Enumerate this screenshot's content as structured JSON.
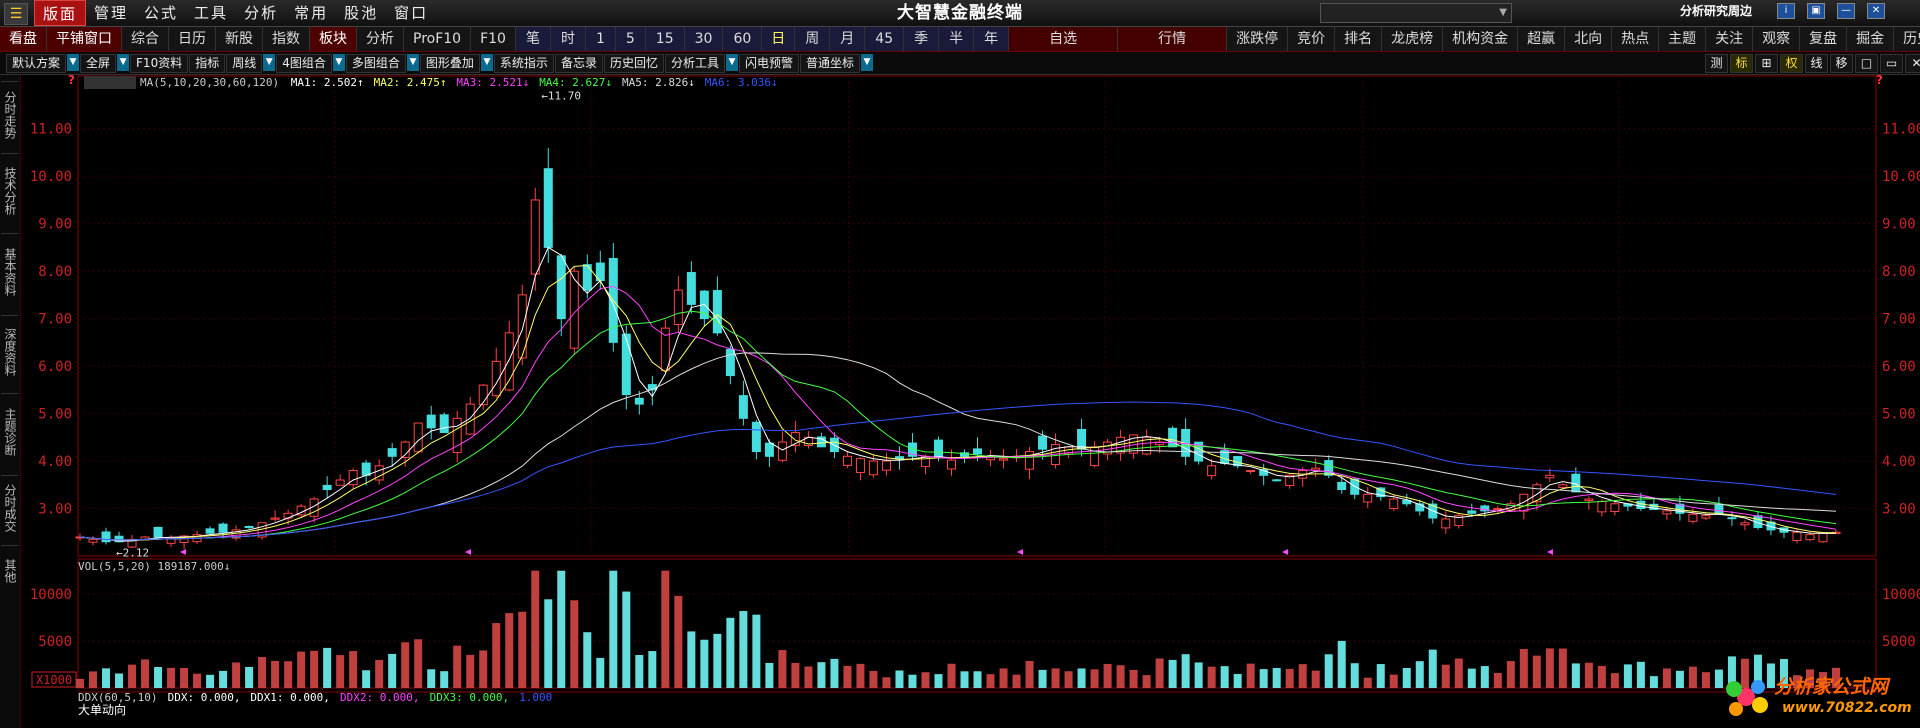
{
  "app": {
    "title": "大智慧金融终端",
    "menu_icon": "hamburger-icon",
    "menus": [
      "版面",
      "管理",
      "公式",
      "工具",
      "分析",
      "常用",
      "股池",
      "窗口"
    ],
    "active_menu": "版面",
    "top_right_label": "分析研究周边",
    "window_buttons": [
      "i",
      "▣",
      "—",
      "✕"
    ],
    "window_button_icons": [
      "info-icon",
      "restore-icon",
      "minimize-icon",
      "close-icon"
    ]
  },
  "tabs": [
    {
      "label": "看盘",
      "style": "red"
    },
    {
      "label": "平铺窗口",
      "style": "red"
    },
    {
      "label": "综合",
      "style": ""
    },
    {
      "label": "日历",
      "style": ""
    },
    {
      "label": "新股",
      "style": ""
    },
    {
      "label": "指数",
      "style": ""
    },
    {
      "label": "板块",
      "style": "red"
    },
    {
      "label": "分析",
      "style": ""
    },
    {
      "label": "ProF10",
      "style": ""
    },
    {
      "label": "F10",
      "style": ""
    },
    {
      "label": "笔",
      "style": "blue"
    },
    {
      "label": "时",
      "style": "blue"
    },
    {
      "label": "1",
      "style": "blue"
    },
    {
      "label": "5",
      "style": "blue"
    },
    {
      "label": "15",
      "style": "blue"
    },
    {
      "label": "30",
      "style": "blue"
    },
    {
      "label": "60",
      "style": "blue"
    },
    {
      "label": "日",
      "style": "bluesel"
    },
    {
      "label": "周",
      "style": "blue"
    },
    {
      "label": "月",
      "style": "blue"
    },
    {
      "label": "45",
      "style": "blue"
    },
    {
      "label": "季",
      "style": "blue"
    },
    {
      "label": "半",
      "style": "blue"
    },
    {
      "label": "年",
      "style": "blue"
    },
    {
      "label": "自选",
      "style": "wide"
    },
    {
      "label": "行情",
      "style": "wide"
    },
    {
      "label": "涨跌停",
      "style": ""
    },
    {
      "label": "竞价",
      "style": ""
    },
    {
      "label": "排名",
      "style": ""
    },
    {
      "label": "龙虎榜",
      "style": ""
    },
    {
      "label": "机构资金",
      "style": ""
    },
    {
      "label": "超赢",
      "style": ""
    },
    {
      "label": "北向",
      "style": ""
    },
    {
      "label": "热点",
      "style": ""
    },
    {
      "label": "主题",
      "style": ""
    },
    {
      "label": "关注",
      "style": ""
    },
    {
      "label": "观察",
      "style": ""
    },
    {
      "label": "复盘",
      "style": ""
    },
    {
      "label": "掘金",
      "style": ""
    },
    {
      "label": "历史",
      "style": ""
    }
  ],
  "toolbar": {
    "items": [
      {
        "label": "默认方案",
        "dd": true
      },
      {
        "label": "全屏",
        "dd": true
      },
      {
        "label": "F10资料",
        "dd": false
      },
      {
        "label": "指标",
        "dd": false
      },
      {
        "label": "周线",
        "dd": true
      },
      {
        "label": "4图组合",
        "dd": true
      },
      {
        "label": "多图组合",
        "dd": true
      },
      {
        "label": "图形叠加",
        "dd": true
      },
      {
        "label": "系统指示",
        "dd": false
      },
      {
        "label": "备忘录",
        "dd": false
      },
      {
        "label": "历史回忆",
        "dd": false
      },
      {
        "label": "分析工具",
        "dd": true
      },
      {
        "label": "闪电预警",
        "dd": false
      },
      {
        "label": "普通坐标",
        "dd": true
      }
    ],
    "right": [
      {
        "label": "测",
        "on": false
      },
      {
        "label": "标",
        "on": true
      },
      {
        "label": "⊞",
        "on": false
      },
      {
        "label": "权",
        "on": true
      },
      {
        "label": "线",
        "on": false
      },
      {
        "label": "移",
        "on": false
      },
      {
        "label": "□",
        "on": false
      },
      {
        "label": "▭",
        "on": false
      },
      {
        "label": "✕",
        "on": false
      }
    ]
  },
  "sidebar": [
    "分时走势",
    "技术分析",
    "基本资料",
    "深度资料",
    "主题诊断",
    "分时成交",
    "其他"
  ],
  "price_panel": {
    "ma_legend": [
      {
        "text": "MA(5,10,20,30,60,120)",
        "color": "#cccccc"
      },
      {
        "text": "MA1: 2.502↑",
        "color": "#ffffff"
      },
      {
        "text": "MA2: 2.475↑",
        "color": "#ffff66"
      },
      {
        "text": "MA3: 2.521↓",
        "color": "#ff44ff"
      },
      {
        "text": "MA4: 2.627↓",
        "color": "#44ff44"
      },
      {
        "text": "MA5: 2.826↓",
        "color": "#dddddd"
      },
      {
        "text": "MA6: 3.036↓",
        "color": "#3355ff"
      }
    ],
    "question_mark": "?",
    "high_label": "11.70",
    "low_label": "2.12",
    "y_ticks": [
      "11.00",
      "10.00",
      "9.00",
      "8.00",
      "7.00",
      "6.00",
      "5.00",
      "4.00",
      "3.00"
    ],
    "y_values": [
      11,
      10,
      9,
      8,
      7,
      6,
      5,
      4,
      3
    ]
  },
  "volume_panel": {
    "legend": "VOL(5,5,20) 189187.000↓",
    "unit": "X1000",
    "y_ticks": [
      "10000",
      "5000"
    ],
    "y_values": [
      10000,
      5000
    ]
  },
  "ddx_panel": {
    "legend": [
      {
        "text": "DDX(60,5,10)",
        "color": "#cccccc"
      },
      {
        "text": "DDX: 0.000,",
        "color": "#ffffff"
      },
      {
        "text": "DDX1: 0.000,",
        "color": "#ffffff"
      },
      {
        "text": "DDX2: 0.000,",
        "color": "#ff44ff"
      },
      {
        "text": "DDX3: 0.000,",
        "color": "#44ff44"
      },
      {
        "text": "1.000",
        "color": "#3355ff"
      }
    ],
    "title": "大单动向"
  },
  "watermark": {
    "text": "分析家公式网",
    "url": "www.70822.com"
  },
  "chart_data": {
    "type": "candlestick",
    "price_range": [
      2.0,
      11.9
    ],
    "volume_range": [
      0,
      13000
    ],
    "close": [
      2.4,
      2.35,
      2.3,
      2.3,
      2.35,
      2.4,
      2.4,
      2.38,
      2.42,
      2.45,
      2.48,
      2.5,
      2.55,
      2.6,
      2.7,
      2.8,
      2.9,
      3.05,
      3.2,
      3.4,
      3.6,
      3.8,
      3.7,
      3.9,
      4.1,
      4.4,
      4.8,
      4.7,
      4.6,
      4.9,
      5.2,
      5.6,
      6.1,
      6.7,
      7.5,
      9.5,
      8.5,
      7.0,
      8.0,
      7.6,
      7.8,
      6.5,
      5.4,
      5.2,
      5.5,
      6.8,
      7.6,
      7.3,
      7.0,
      6.7,
      5.8,
      4.9,
      4.2,
      4.1,
      4.4,
      4.6,
      4.5,
      4.3,
      4.2,
      4.1,
      4.05,
      4.0,
      4.0,
      4.05,
      4.1,
      4.1,
      4.08,
      4.02,
      4.1,
      4.15,
      4.1,
      4.05,
      4.1,
      4.2,
      4.25,
      4.35,
      4.3,
      4.25,
      4.3,
      4.4,
      4.5,
      4.55,
      4.5,
      4.4,
      4.3,
      4.1,
      4.0,
      3.9,
      3.95,
      3.9,
      3.8,
      3.7,
      3.6,
      3.7,
      3.8,
      3.85,
      3.7,
      3.4,
      3.3,
      3.3,
      3.25,
      3.2,
      3.1,
      2.95,
      2.8,
      2.78,
      2.85,
      2.9,
      2.95,
      3.0,
      3.1,
      3.3,
      3.5,
      3.7,
      3.5,
      3.35,
      3.2,
      3.15,
      3.1,
      3.05,
      3.0,
      2.98,
      2.95,
      2.9,
      2.88,
      2.85,
      2.9,
      2.8,
      2.7,
      2.6,
      2.55,
      2.5,
      2.5,
      2.45,
      2.48,
      2.5
    ]
  }
}
